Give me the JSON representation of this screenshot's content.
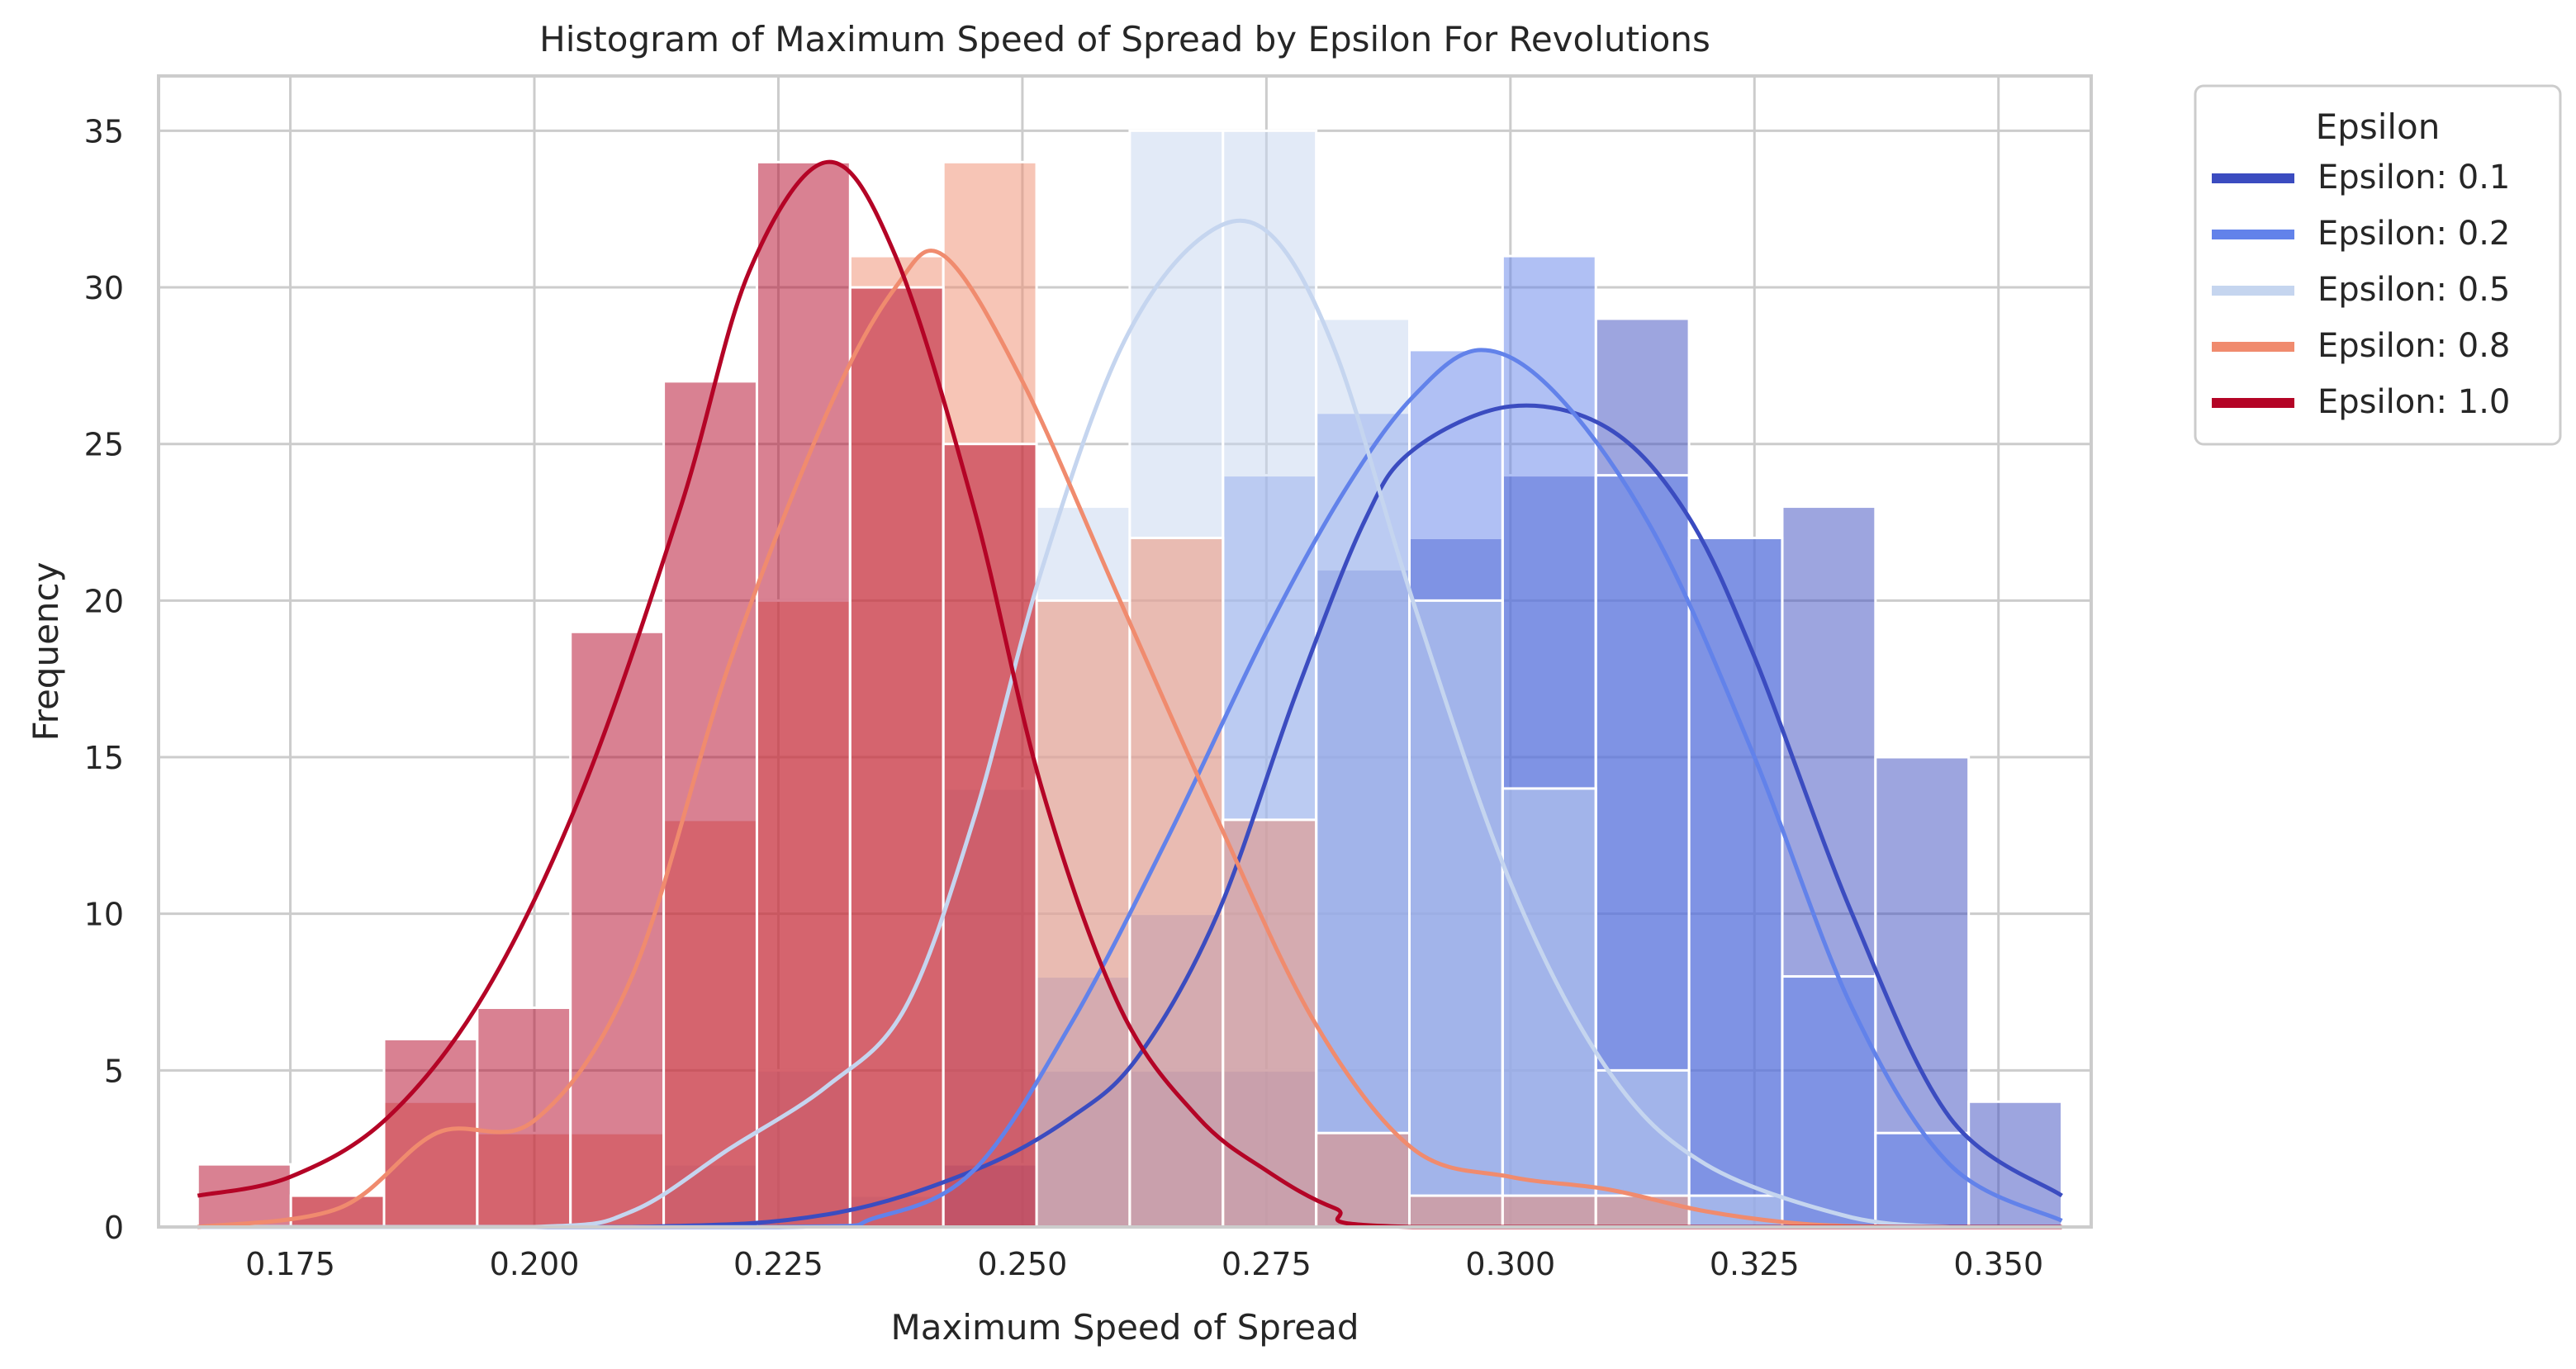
{
  "chart_data": {
    "type": "histogram",
    "title": "Histogram of Maximum Speed of Spread by Epsilon For Revolutions",
    "xlabel": "Maximum Speed of Spread",
    "ylabel": "Frequency",
    "xlim": [
      0.1615,
      0.3595
    ],
    "ylim": [
      0,
      36.75
    ],
    "xticks": [
      "0.175",
      "0.200",
      "0.225",
      "0.250",
      "0.275",
      "0.300",
      "0.325",
      "0.350"
    ],
    "yticks": [
      "0",
      "5",
      "10",
      "15",
      "20",
      "25",
      "30",
      "35"
    ],
    "grid": true,
    "bin_edges": [
      0.1655,
      0.17505,
      0.1846,
      0.19415,
      0.2037,
      0.21325,
      0.2228,
      0.23235,
      0.2419,
      0.25145,
      0.261,
      0.27055,
      0.2801,
      0.28965,
      0.2992,
      0.30875,
      0.3183,
      0.32785,
      0.3374,
      0.34695,
      0.3565
    ],
    "legend": {
      "title": "Epsilon",
      "position": "outside-right"
    },
    "series": [
      {
        "name": "Epsilon: 0.1",
        "color": "#3b4cc0",
        "counts": [
          0,
          0,
          0,
          0,
          0,
          0,
          0,
          0,
          2,
          5,
          5,
          5,
          21,
          22,
          24,
          29,
          22,
          23,
          15,
          4
        ],
        "kde": [
          [
            0.1655,
            0
          ],
          [
            0.21,
            0
          ],
          [
            0.23,
            0.4
          ],
          [
            0.245,
            1.8
          ],
          [
            0.255,
            3.5
          ],
          [
            0.262,
            5.5
          ],
          [
            0.27,
            10
          ],
          [
            0.278,
            17
          ],
          [
            0.285,
            22.5
          ],
          [
            0.29,
            24.8
          ],
          [
            0.3,
            26.2
          ],
          [
            0.31,
            25.5
          ],
          [
            0.318,
            22.8
          ],
          [
            0.325,
            18.2
          ],
          [
            0.335,
            10
          ],
          [
            0.345,
            3.5
          ],
          [
            0.3565,
            1
          ]
        ]
      },
      {
        "name": "Epsilon: 0.2",
        "color": "#6282ea",
        "counts": [
          0,
          0,
          0,
          0,
          0,
          0,
          0,
          0,
          0,
          8,
          10,
          24,
          26,
          28,
          31,
          24,
          22,
          8,
          3,
          0
        ],
        "kde": [
          [
            0.1655,
            0
          ],
          [
            0.225,
            0
          ],
          [
            0.235,
            0.3
          ],
          [
            0.245,
            1.8
          ],
          [
            0.255,
            6.5
          ],
          [
            0.265,
            12.5
          ],
          [
            0.275,
            19
          ],
          [
            0.283,
            23.5
          ],
          [
            0.29,
            26.5
          ],
          [
            0.297,
            28
          ],
          [
            0.305,
            26.5
          ],
          [
            0.315,
            22
          ],
          [
            0.325,
            15
          ],
          [
            0.335,
            7
          ],
          [
            0.345,
            2
          ],
          [
            0.3565,
            0.2
          ]
        ]
      },
      {
        "name": "Epsilon: 0.5",
        "color": "#c5d5ef",
        "counts": [
          0,
          0,
          0,
          0,
          0,
          2,
          5,
          1,
          14,
          23,
          35,
          35,
          29,
          20,
          14,
          5,
          1,
          0,
          0,
          0
        ],
        "kde": [
          [
            0.1655,
            0
          ],
          [
            0.2,
            0
          ],
          [
            0.21,
            0.5
          ],
          [
            0.22,
            2.5
          ],
          [
            0.23,
            4.5
          ],
          [
            0.238,
            7
          ],
          [
            0.245,
            13
          ],
          [
            0.252,
            21
          ],
          [
            0.26,
            28
          ],
          [
            0.268,
            31.5
          ],
          [
            0.275,
            31.8
          ],
          [
            0.282,
            28
          ],
          [
            0.29,
            20
          ],
          [
            0.3,
            11
          ],
          [
            0.31,
            5
          ],
          [
            0.32,
            2
          ],
          [
            0.335,
            0.3
          ],
          [
            0.345,
            0
          ]
        ]
      },
      {
        "name": "Epsilon: 0.8",
        "color": "#f08b6e",
        "counts": [
          0,
          1,
          4,
          3,
          3,
          13,
          20,
          31,
          34,
          20,
          22,
          13,
          3,
          1,
          1,
          1,
          0,
          0,
          0,
          0
        ],
        "kde": [
          [
            0.1655,
            0
          ],
          [
            0.18,
            0.6
          ],
          [
            0.19,
            3
          ],
          [
            0.2,
            3.4
          ],
          [
            0.21,
            8
          ],
          [
            0.22,
            18
          ],
          [
            0.23,
            26
          ],
          [
            0.237,
            30
          ],
          [
            0.242,
            31
          ],
          [
            0.25,
            27
          ],
          [
            0.26,
            20
          ],
          [
            0.27,
            13
          ],
          [
            0.28,
            6.5
          ],
          [
            0.29,
            2.5
          ],
          [
            0.3,
            1.6
          ],
          [
            0.31,
            1.2
          ],
          [
            0.32,
            0.5
          ],
          [
            0.33,
            0.1
          ],
          [
            0.34,
            0
          ]
        ]
      },
      {
        "name": "Epsilon: 1.0",
        "color": "#b40426",
        "counts": [
          2,
          1,
          6,
          7,
          19,
          27,
          34,
          30,
          25,
          0,
          0,
          0,
          0,
          0,
          0,
          0,
          0,
          0,
          0,
          0
        ],
        "kde": [
          [
            0.1655,
            1
          ],
          [
            0.175,
            1.6
          ],
          [
            0.185,
            3.5
          ],
          [
            0.195,
            7.5
          ],
          [
            0.205,
            14
          ],
          [
            0.215,
            23
          ],
          [
            0.222,
            30.5
          ],
          [
            0.23,
            34
          ],
          [
            0.237,
            31
          ],
          [
            0.245,
            23
          ],
          [
            0.252,
            14
          ],
          [
            0.26,
            7
          ],
          [
            0.268,
            3.5
          ],
          [
            0.275,
            1.8
          ],
          [
            0.282,
            0.6
          ],
          [
            0.29,
            0
          ],
          [
            0.3565,
            0
          ]
        ]
      }
    ]
  }
}
